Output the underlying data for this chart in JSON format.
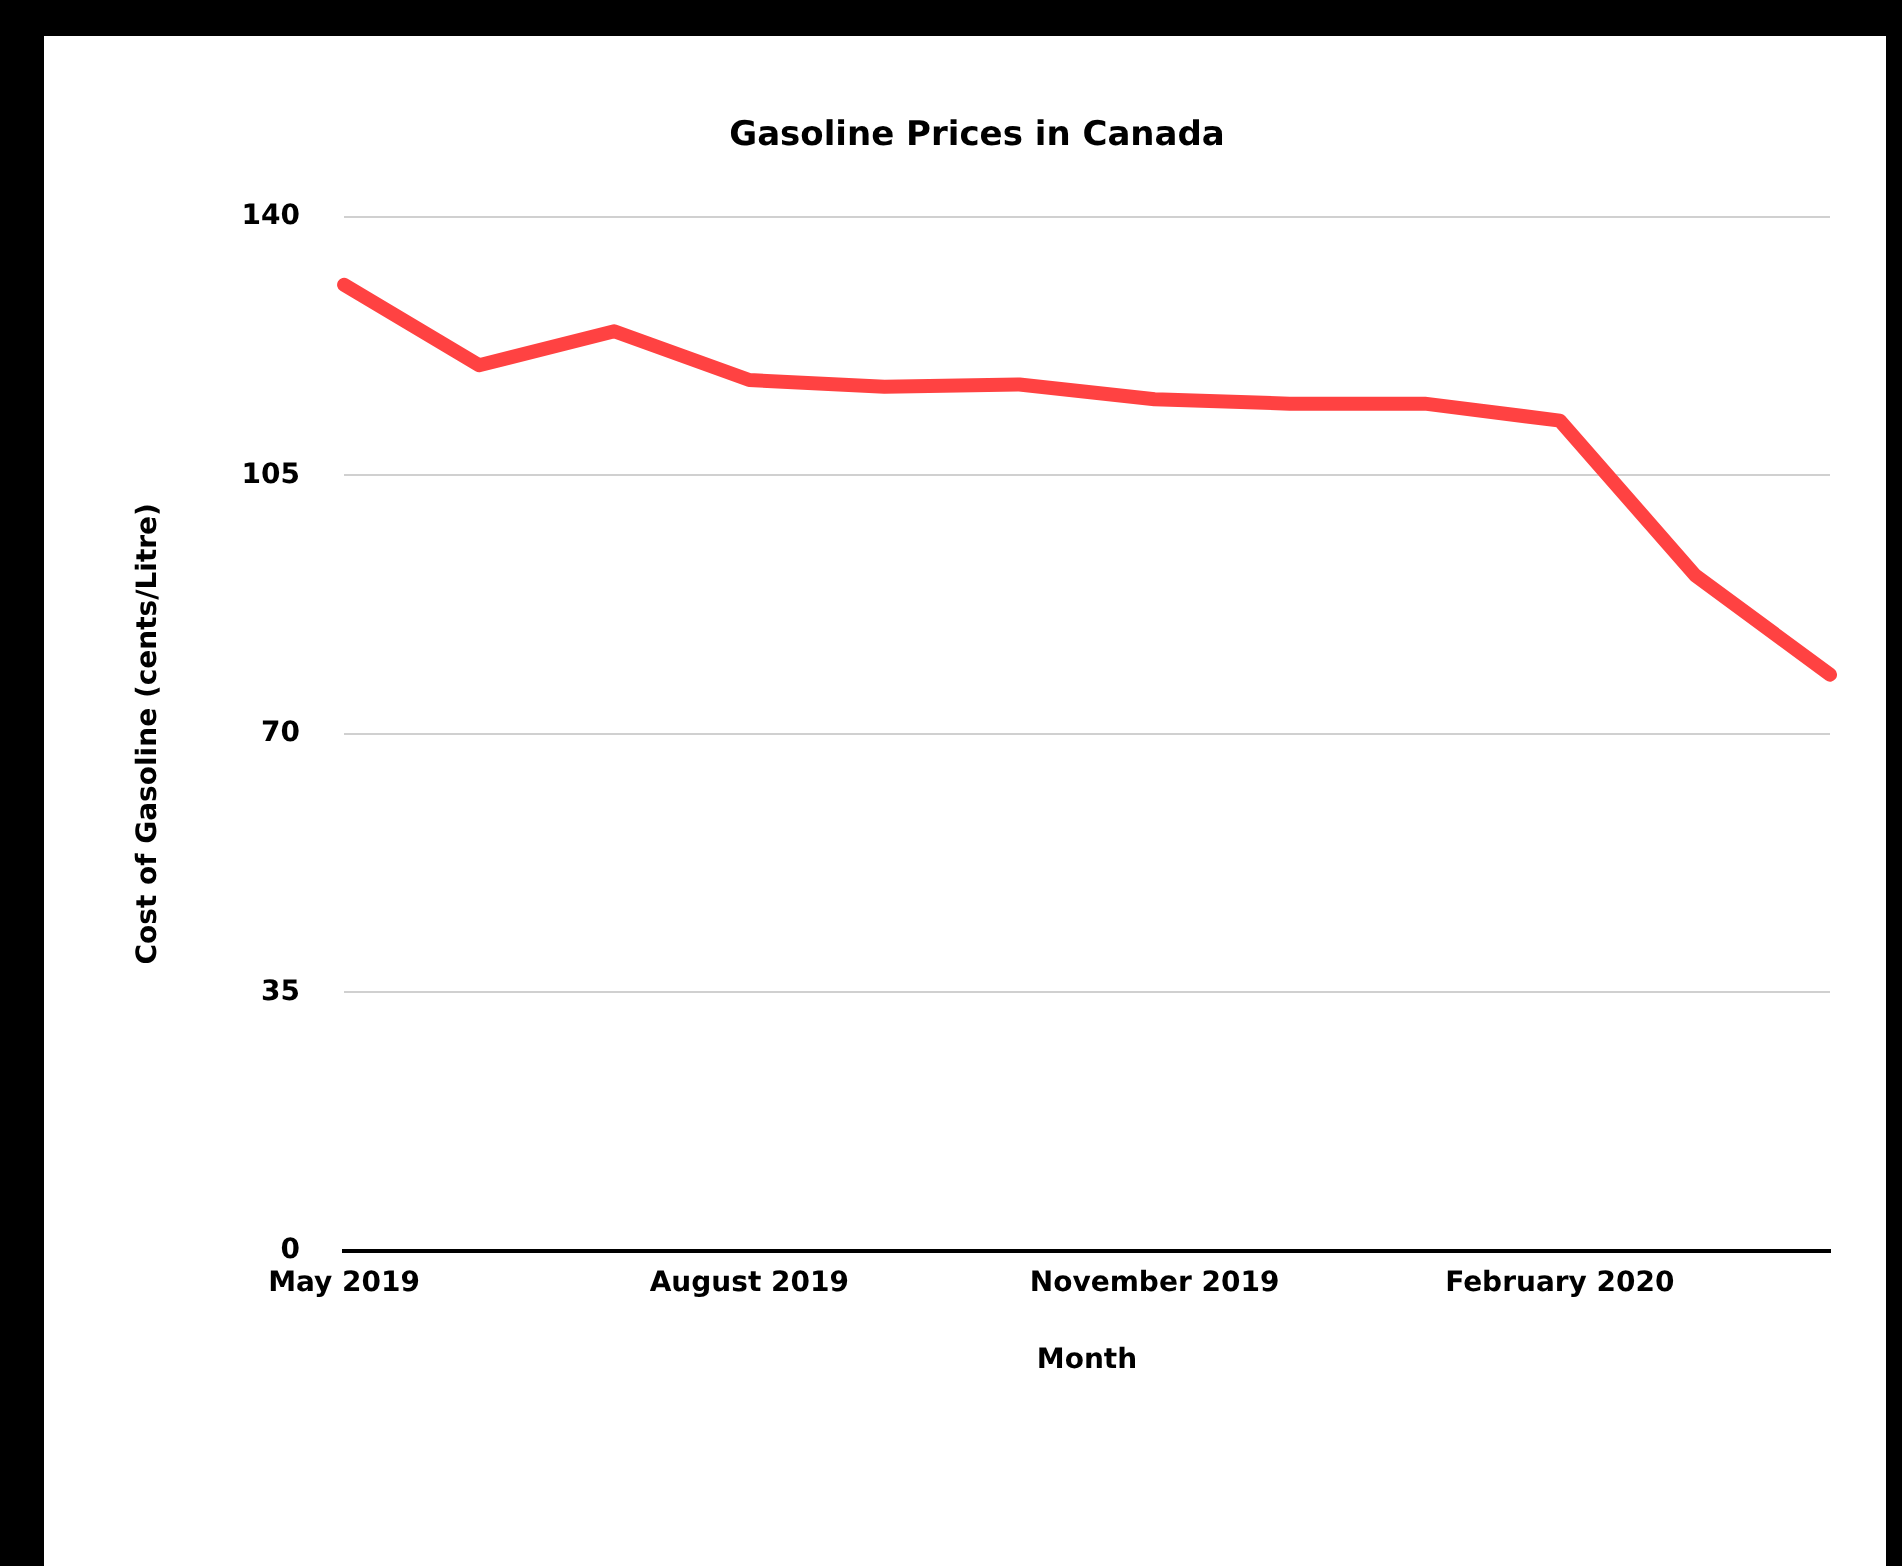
{
  "chart_data": {
    "type": "line",
    "title": "Gasoline Prices in Canada",
    "xlabel": "Month",
    "ylabel": "Cost of Gasoline (cents/Litre)",
    "categories": [
      "May 2019",
      null,
      null,
      "August 2019",
      null,
      null,
      "November 2019",
      null,
      null,
      "February 2020",
      null,
      null
    ],
    "series": [
      {
        "color": "#ff4242",
        "values": [
          130.8,
          119.9,
          124.5,
          117.9,
          117.0,
          117.3,
          115.3,
          114.7,
          114.7,
          112.4,
          91.5,
          78.0
        ]
      }
    ],
    "ylim": [
      0,
      140
    ],
    "yticks": [
      0,
      35,
      70,
      105,
      140
    ],
    "grid": "y",
    "legend": false,
    "marker": "none",
    "line_style": "solid"
  }
}
